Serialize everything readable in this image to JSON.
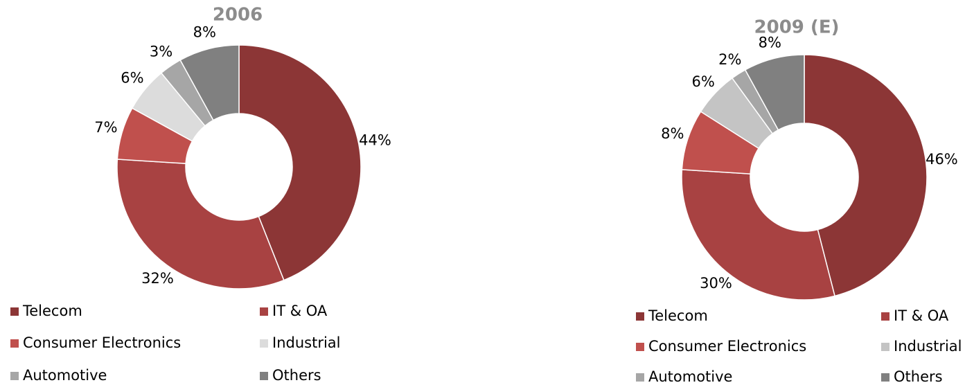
{
  "chart_data": [
    {
      "type": "pie",
      "title": "2006",
      "categories": [
        "Telecom",
        "IT & OA",
        "Consumer Electronics",
        "Industrial",
        "Automotive",
        "Others"
      ],
      "values": [
        44,
        32,
        7,
        6,
        3,
        8
      ],
      "value_labels": [
        "44%",
        "32%",
        "7%",
        "6%",
        "3%",
        "8%"
      ],
      "colors": [
        "#8c3636",
        "#a84242",
        "#c0504d",
        "#dcdcdc",
        "#a6a6a6",
        "#808080"
      ]
    },
    {
      "type": "pie",
      "title": "2009 (E)",
      "categories": [
        "Telecom",
        "IT & OA",
        "Consumer Electronics",
        "Industrial",
        "Automotive",
        "Others"
      ],
      "values": [
        46,
        30,
        8,
        6,
        2,
        8
      ],
      "value_labels": [
        "46%",
        "30%",
        "8%",
        "6%",
        "2%",
        "8%"
      ],
      "colors": [
        "#8c3636",
        "#a84242",
        "#c0504d",
        "#c4c4c4",
        "#a6a6a6",
        "#808080"
      ]
    }
  ]
}
